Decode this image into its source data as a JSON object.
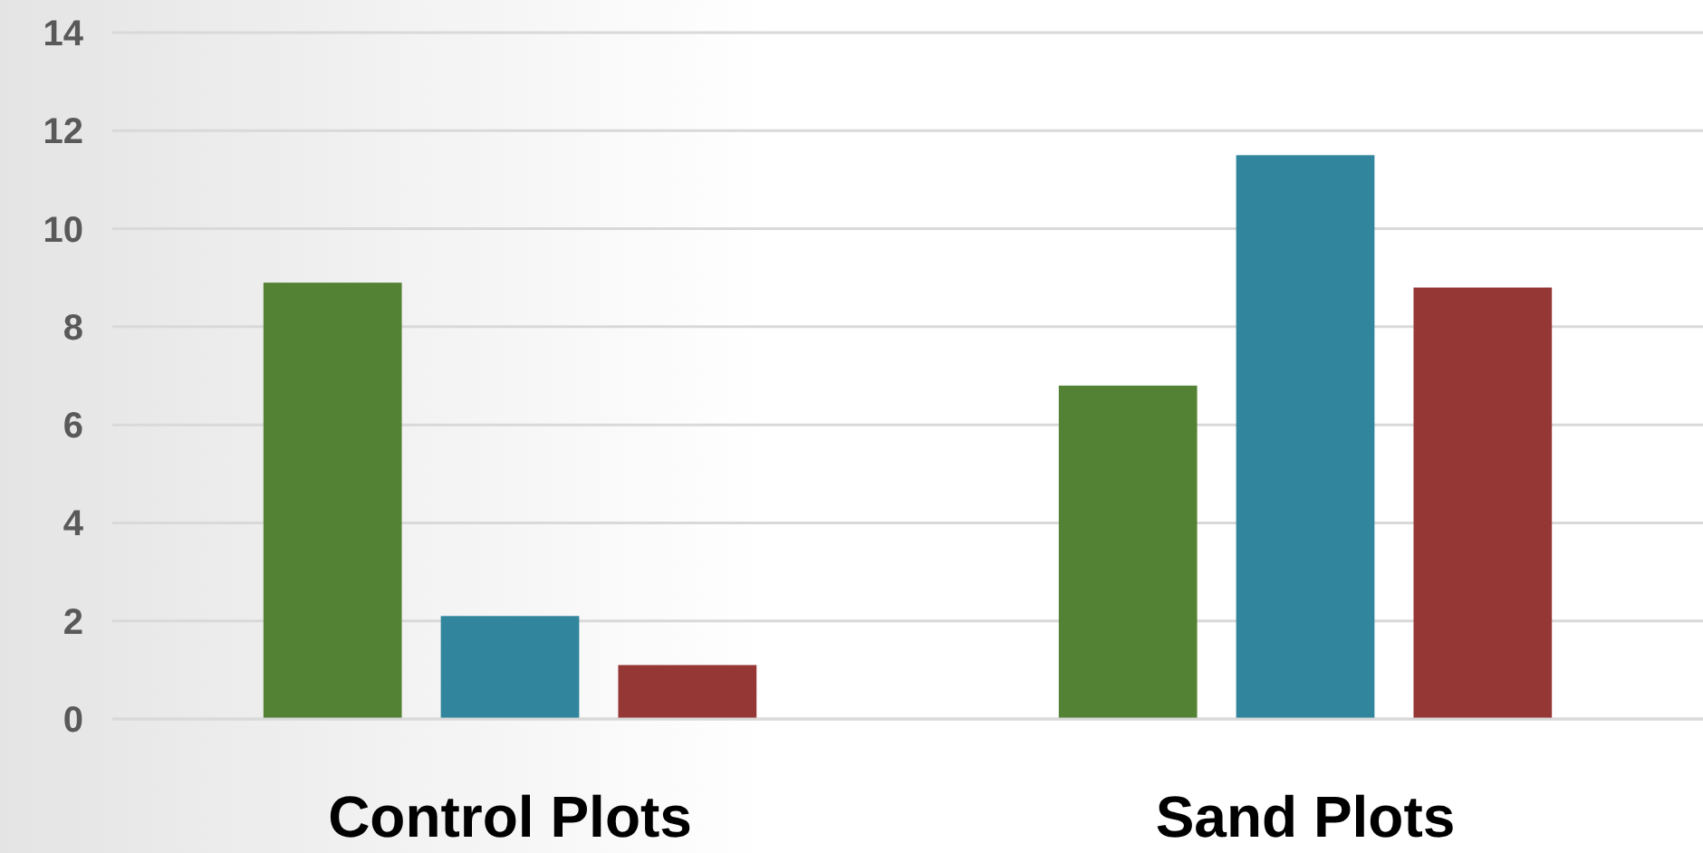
{
  "chart_data": {
    "type": "bar",
    "categories": [
      "Control Plots",
      "Sand Plots"
    ],
    "series": [
      {
        "color": "#548235",
        "values": [
          8.9,
          6.8
        ]
      },
      {
        "color": "#31859c",
        "values": [
          2.1,
          11.5
        ]
      },
      {
        "color": "#953735",
        "values": [
          1.1,
          8.8
        ]
      }
    ],
    "ylim": [
      0,
      14
    ],
    "yticks": [
      0,
      2,
      4,
      6,
      8,
      10,
      12,
      14
    ],
    "grid": "y"
  }
}
